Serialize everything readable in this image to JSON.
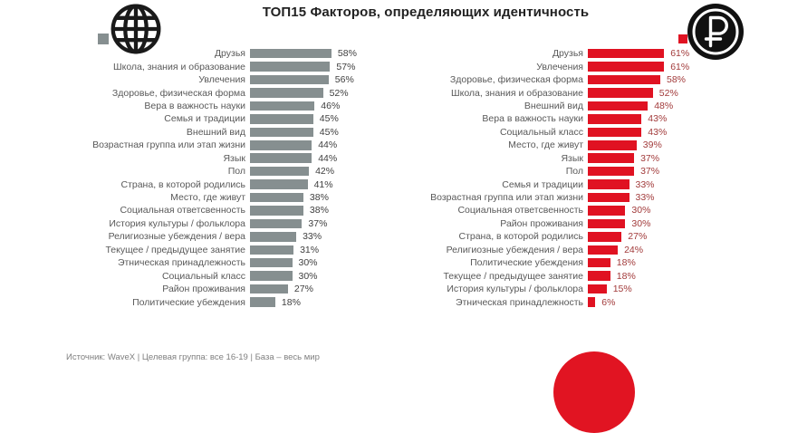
{
  "title": "ТОП15 Факторов, определяющих идентичность",
  "footer": "Источник:  WaveX | Целевая группа: все 16-19 | База  – весь мир",
  "colors": {
    "world_bar": "#868F90",
    "world_value_text": "#404040",
    "ruble_bar": "#E01222",
    "ruble_value_text": "#A23B3B",
    "label_text": "#595959",
    "bottom_logo_red": "#E11422",
    "icon_black": "#1A1A1A"
  },
  "legend": [
    {
      "name": "world-group",
      "icon": "globe-icon",
      "swatch_color": "#868F90"
    },
    {
      "name": "ruble-group",
      "icon": "ruble-icon",
      "swatch_color": "#E01222"
    }
  ],
  "chart_data": [
    {
      "type": "bar",
      "orientation": "horizontal",
      "title": "ТОП15 Факторов, определяющих идентичность",
      "group": "globe (весь мир)",
      "unit": "%",
      "bar_color": "#868F90",
      "value_label_color": "#404040",
      "xlim": [
        0,
        65
      ],
      "categories": [
        "Друзья",
        "Школа, знания и образование",
        "Увлечения",
        "Здоровье, физическая форма",
        "Вера в важность науки",
        "Семья и традиции",
        "Внешний вид",
        "Возрастная группа или этап жизни",
        "Язык",
        "Пол",
        "Страна, в которой родились",
        "Место, где живут",
        "Социальная ответсвенность",
        "История культуры / фольклора",
        "Религиозные убеждения / вера",
        "Текущее / предыдущее занятие",
        "Этническая принадлежность",
        "Социальный класс",
        "Район проживания",
        "Политические убеждения"
      ],
      "values": [
        58,
        57,
        56,
        52,
        46,
        45,
        45,
        44,
        44,
        42,
        41,
        38,
        38,
        37,
        33,
        31,
        30,
        30,
        27,
        18
      ]
    },
    {
      "type": "bar",
      "orientation": "horizontal",
      "title": "ТОП15 Факторов, определяющих идентичность",
      "group": "ruble (₽)",
      "unit": "%",
      "bar_color": "#E01222",
      "value_label_color": "#A23B3B",
      "xlim": [
        0,
        65
      ],
      "categories": [
        "Друзья",
        "Увлечения",
        "Здоровье, физическая форма",
        "Школа, знания и образование",
        "Внешний вид",
        "Вера в важность науки",
        "Социальный класс",
        "Место, где живут",
        "Язык",
        "Пол",
        "Семья и традиции",
        "Возрастная группа или этап жизни",
        "Социальная ответсвенность",
        "Район проживания",
        "Страна, в которой родились",
        "Религиозные убеждения / вера",
        "Политические убеждения",
        "Текущее / предыдущее занятие",
        "История культуры / фольклора",
        "Этническая принадлежность"
      ],
      "values": [
        61,
        61,
        58,
        52,
        48,
        43,
        43,
        39,
        37,
        37,
        33,
        33,
        30,
        30,
        27,
        24,
        18,
        18,
        15,
        6
      ]
    }
  ]
}
